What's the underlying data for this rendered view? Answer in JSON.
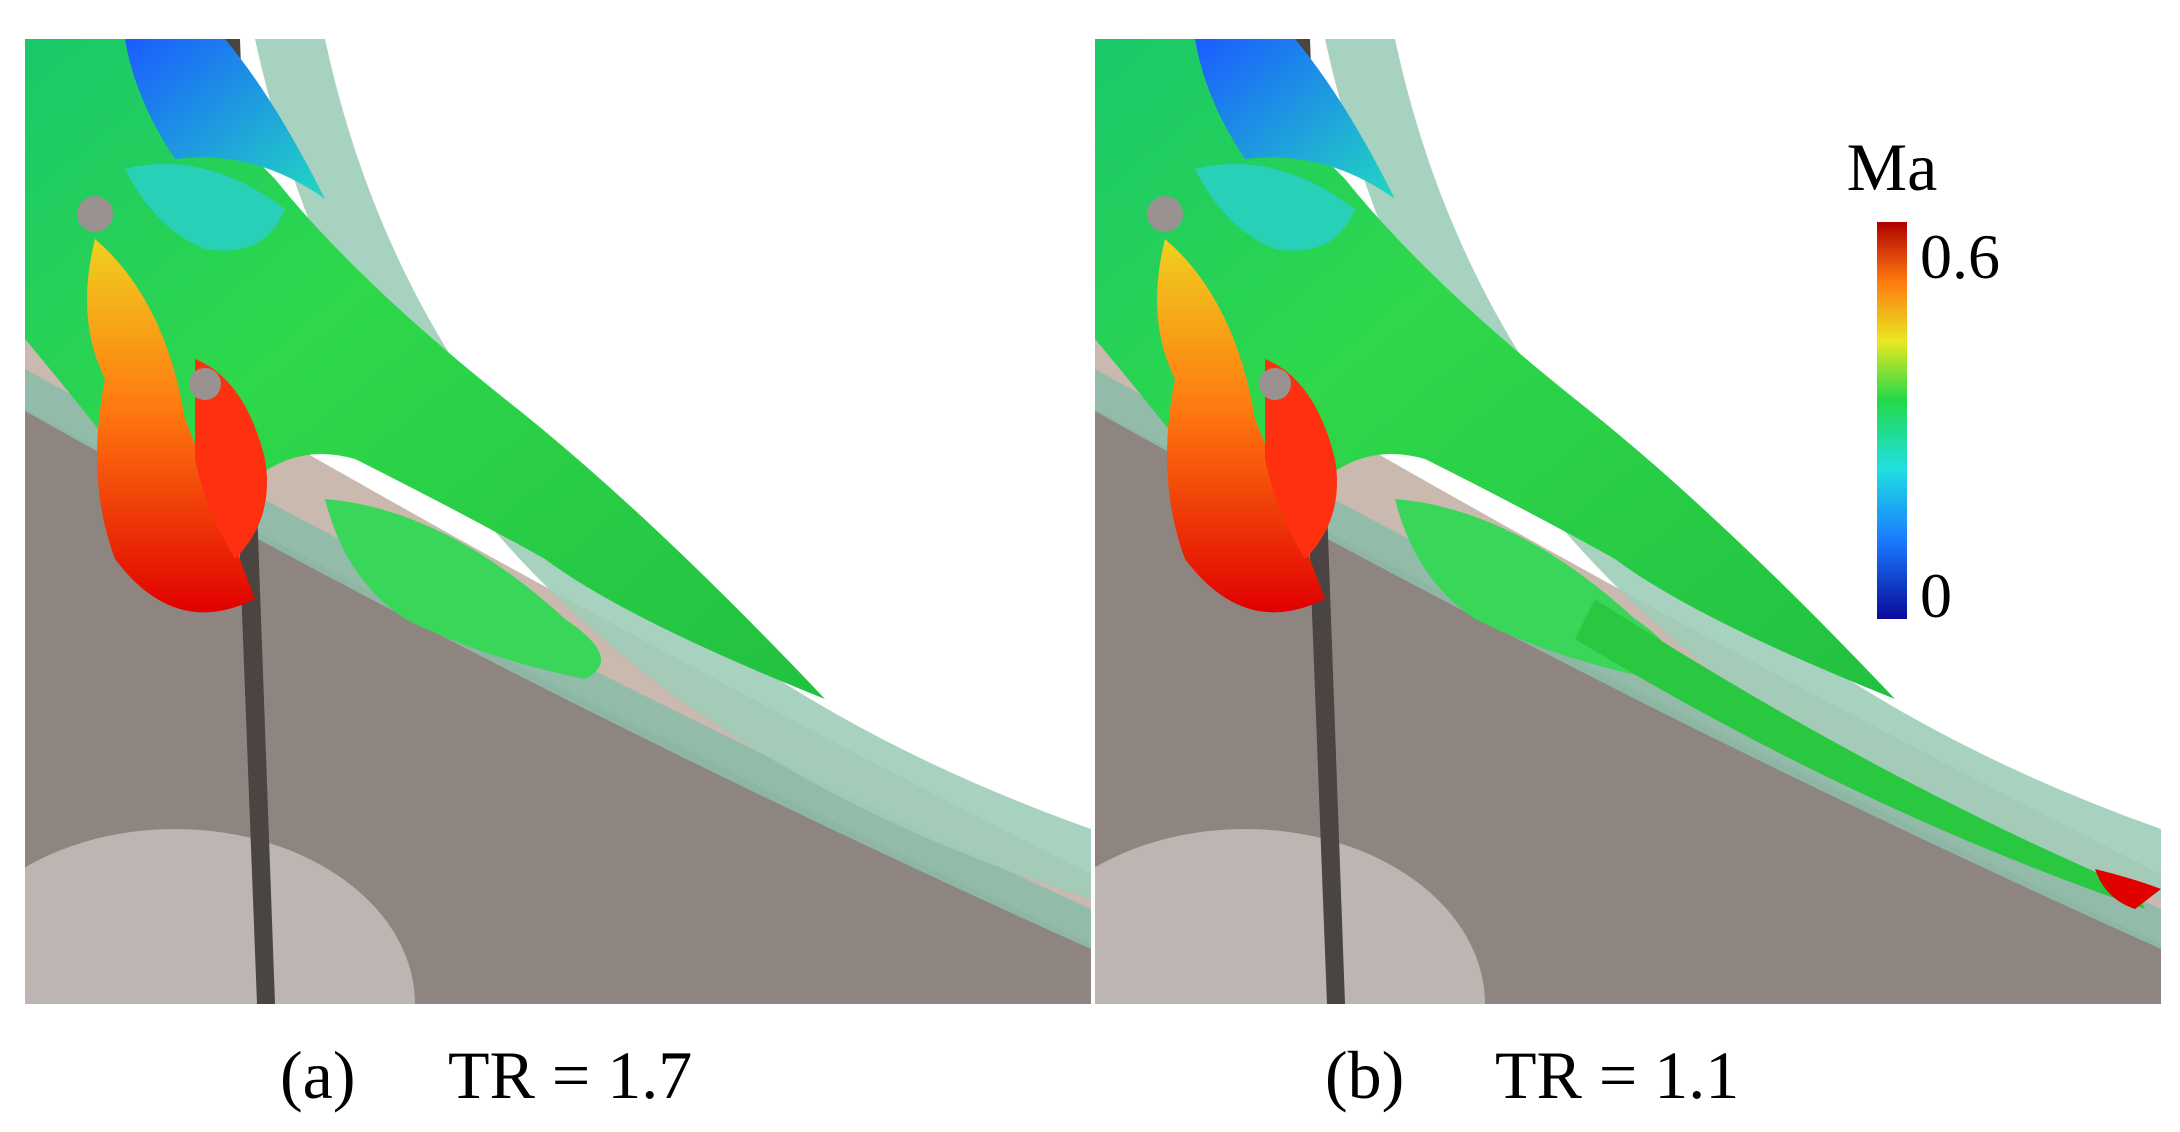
{
  "panels": [
    {
      "label": "(a)",
      "caption": "TR = 1.7"
    },
    {
      "label": "(b)",
      "caption": "TR = 1.1"
    }
  ],
  "colorbar": {
    "label": "Ma",
    "max": "0.6",
    "min": "0"
  }
}
